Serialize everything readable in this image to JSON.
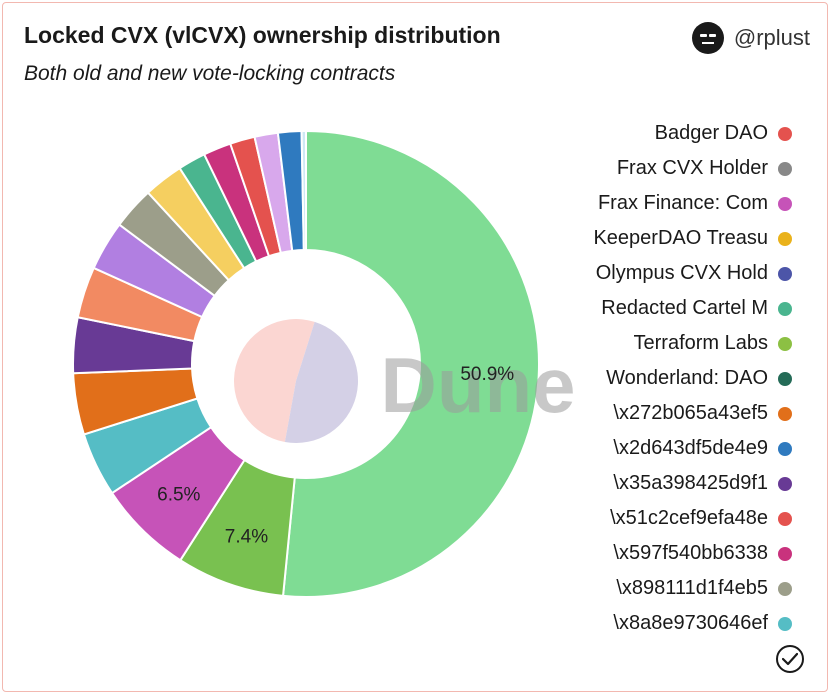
{
  "header": {
    "title": "Locked CVX (vlCVX) ownership distribution",
    "subtitle": "Both old and new vote-locking contracts",
    "author": "@rplust"
  },
  "watermark": "Dune",
  "chart_data": {
    "type": "pie",
    "donut": true,
    "start": "top, clockwise",
    "slices": [
      {
        "value": 50.9,
        "color": "#7fdc94",
        "label": "50.9%"
      },
      {
        "value": 7.4,
        "color": "#79c150",
        "label": "7.4%"
      },
      {
        "value": 6.5,
        "color": "#c653b8",
        "label": "6.5%"
      },
      {
        "value": 4.4,
        "color": "#55bdc5",
        "label": ""
      },
      {
        "value": 4.2,
        "color": "#e16f1a",
        "label": ""
      },
      {
        "value": 3.8,
        "color": "#683a95",
        "label": ""
      },
      {
        "value": 3.5,
        "color": "#f28a62",
        "label": ""
      },
      {
        "value": 3.4,
        "color": "#b17fe1",
        "label": ""
      },
      {
        "value": 2.9,
        "color": "#9c9e8a",
        "label": ""
      },
      {
        "value": 2.7,
        "color": "#f5cf60",
        "label": ""
      },
      {
        "value": 1.9,
        "color": "#4ab58f",
        "label": ""
      },
      {
        "value": 1.9,
        "color": "#c9327d",
        "label": ""
      },
      {
        "value": 1.7,
        "color": "#e4524e",
        "label": ""
      },
      {
        "value": 1.6,
        "color": "#d8a8ec",
        "label": ""
      },
      {
        "value": 1.6,
        "color": "#2f7abf",
        "label": ""
      },
      {
        "value": 0.3,
        "color": "#cfe8f5",
        "label": ""
      }
    ],
    "inner_pie": [
      {
        "value": 52,
        "color": "#fbd6d2"
      },
      {
        "value": 48,
        "color": "#d4d0e6"
      }
    ],
    "legend_position": "right"
  },
  "legend": [
    {
      "label": "Badger DAO",
      "color": "#e4524e"
    },
    {
      "label": "Frax CVX Holder",
      "color": "#888888"
    },
    {
      "label": "Frax Finance: Com",
      "color": "#c653b8"
    },
    {
      "label": "KeeperDAO Treasu",
      "color": "#eab21b"
    },
    {
      "label": "Olympus CVX Hold",
      "color": "#4c55a8"
    },
    {
      "label": "Redacted Cartel M",
      "color": "#4ab58f"
    },
    {
      "label": "Terraform Labs",
      "color": "#8cc043"
    },
    {
      "label": "Wonderland: DAO",
      "color": "#246b57"
    },
    {
      "label": "\\x272b065a43ef5",
      "color": "#e16f1a"
    },
    {
      "label": "\\x2d643df5de4e9",
      "color": "#2f7abf"
    },
    {
      "label": "\\x35a398425d9f1",
      "color": "#683a95"
    },
    {
      "label": "\\x51c2cef9efa48e",
      "color": "#e4524e"
    },
    {
      "label": "\\x597f540bb6338",
      "color": "#c9327d"
    },
    {
      "label": "\\x898111d1f4eb5",
      "color": "#9c9e8a"
    },
    {
      "label": "\\x8a8e9730646ef",
      "color": "#55bdc5"
    }
  ],
  "icons": {
    "author": "user-avatar-icon",
    "verified": "check-circle-icon"
  }
}
